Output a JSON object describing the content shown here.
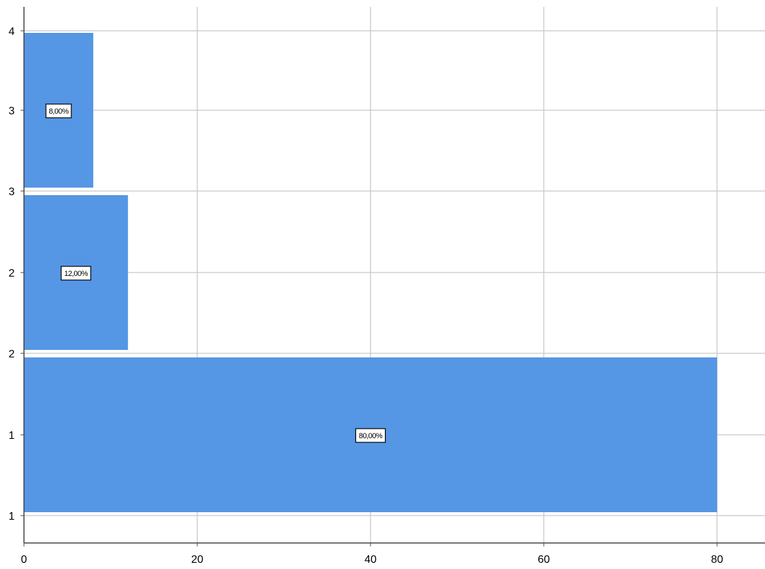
{
  "chart_data": {
    "type": "bar",
    "orientation": "horizontal",
    "xlim": [
      0,
      87
    ],
    "x_ticks": [
      "0",
      "20",
      "40",
      "60",
      "80"
    ],
    "y_tick_labels": [
      "1",
      "1",
      "2",
      "2",
      "3",
      "3",
      "4"
    ],
    "categories": [
      "1",
      "2",
      "3"
    ],
    "values": [
      80,
      12,
      8
    ],
    "data_labels": [
      "80,00%",
      "12,00%",
      "8,00%"
    ],
    "title": "",
    "xlabel": "",
    "ylabel": "",
    "grid": true,
    "bar_color": "#5596e5"
  }
}
